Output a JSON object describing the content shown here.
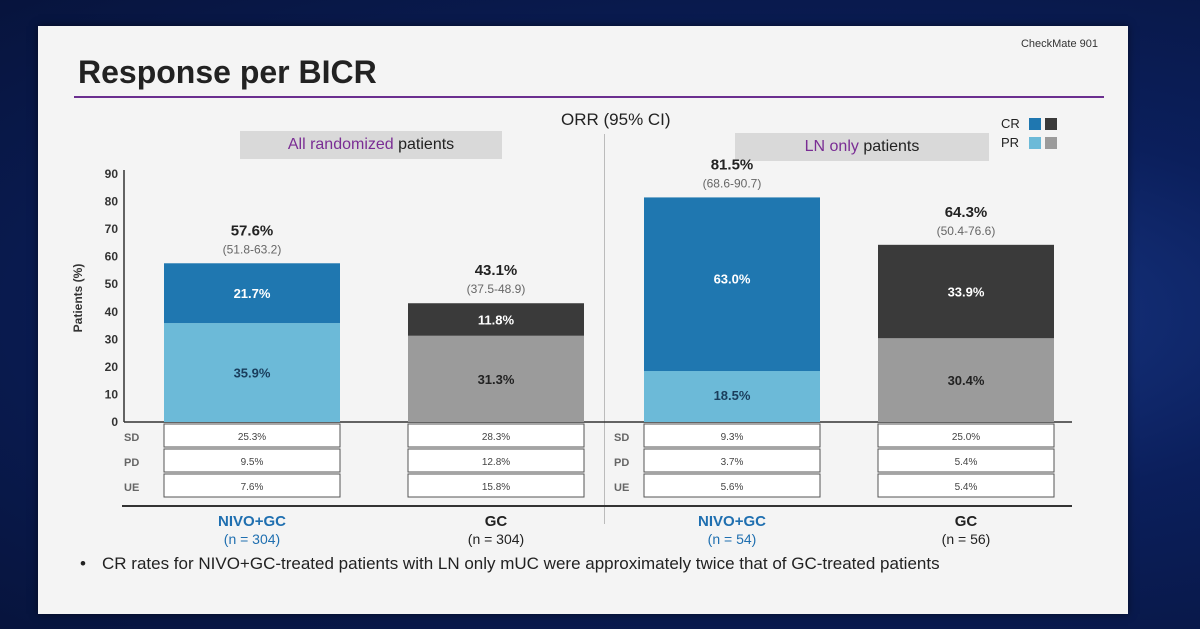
{
  "slide": {
    "study": "CheckMate 901",
    "title": "Response per BICR",
    "orr_label": "ORR (95% CI)",
    "group_left_highlight": "All randomized",
    "group_left_rest": " patients",
    "group_right_highlight": "LN only",
    "group_right_rest": " patients",
    "bullet": "CR rates for NIVO+GC-treated patients with LN only mUC were approximately twice that of GC-treated patients"
  },
  "legend": {
    "cr_label": "CR",
    "pr_label": "PR"
  },
  "colors": {
    "nivo_cr": "#1f77b0",
    "nivo_pr": "#6cbad8",
    "gc_cr": "#3a3a3a",
    "gc_pr": "#9b9b9b"
  },
  "chart_data": {
    "type": "bar",
    "stacked": true,
    "ylabel": "Patients (%)",
    "ylim": [
      0,
      90
    ],
    "yticks": [
      0,
      10,
      20,
      30,
      40,
      50,
      60,
      70,
      80,
      90
    ],
    "table_row_labels": [
      "SD",
      "PD",
      "UE"
    ],
    "bars": [
      {
        "arm": "NIVO+GC",
        "n_label": "(n = 304)",
        "scheme": "nivo",
        "pr": 35.9,
        "cr": 21.7,
        "pr_label": "35.9%",
        "cr_label": "21.7%",
        "orr_label": "57.6%",
        "ci_label": "(51.8-63.2)",
        "sd": "25.3%",
        "pd": "9.5%",
        "ue": "7.6%"
      },
      {
        "arm": "GC",
        "n_label": "(n = 304)",
        "scheme": "gc",
        "pr": 31.3,
        "cr": 11.8,
        "pr_label": "31.3%",
        "cr_label": "11.8%",
        "orr_label": "43.1%",
        "ci_label": "(37.5-48.9)",
        "sd": "28.3%",
        "pd": "12.8%",
        "ue": "15.8%"
      },
      {
        "arm": "NIVO+GC",
        "n_label": "(n = 54)",
        "scheme": "nivo",
        "pr": 18.5,
        "cr": 63.0,
        "pr_label": "18.5%",
        "cr_label": "63.0%",
        "orr_label": "81.5%",
        "ci_label": "(68.6-90.7)",
        "sd": "9.3%",
        "pd": "3.7%",
        "ue": "5.6%"
      },
      {
        "arm": "GC",
        "n_label": "(n = 56)",
        "scheme": "gc",
        "pr": 30.4,
        "cr": 33.9,
        "pr_label": "30.4%",
        "cr_label": "33.9%",
        "orr_label": "64.3%",
        "ci_label": "(50.4-76.6)",
        "sd": "25.0%",
        "pd": "5.4%",
        "ue": "5.4%"
      }
    ]
  }
}
